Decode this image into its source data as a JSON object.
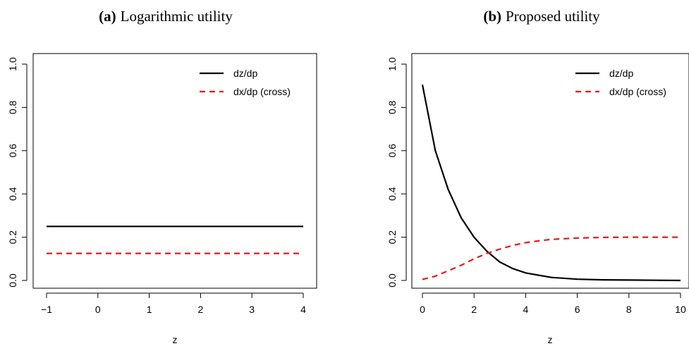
{
  "chart_data": [
    {
      "type": "line",
      "title_tag": "(a)",
      "title": "Logarithmic utility",
      "xlabel": "z",
      "ylabel": "",
      "xlim": [
        -1,
        4
      ],
      "ylim": [
        0,
        1
      ],
      "x_ticks": [
        "−1",
        "0",
        "1",
        "2",
        "3",
        "4"
      ],
      "x_tick_values": [
        -1,
        0,
        1,
        2,
        3,
        4
      ],
      "y_ticks": [
        "0.0",
        "0.2",
        "0.4",
        "0.6",
        "0.8",
        "1.0"
      ],
      "y_tick_values": [
        0,
        0.2,
        0.4,
        0.6,
        0.8,
        1.0
      ],
      "grid": false,
      "legend": "top-right",
      "series": [
        {
          "name": "dz/dp",
          "color": "#000000",
          "style": "solid",
          "x": [
            -1,
            4
          ],
          "y": [
            0.25,
            0.25
          ]
        },
        {
          "name": "dx/dp (cross)",
          "color": "#e41a1c",
          "style": "dashed",
          "x": [
            -1,
            4
          ],
          "y": [
            0.125,
            0.125
          ]
        }
      ]
    },
    {
      "type": "line",
      "title_tag": "(b)",
      "title": "Proposed utility",
      "xlabel": "z",
      "ylabel": "",
      "xlim": [
        0,
        10
      ],
      "ylim": [
        0,
        1
      ],
      "x_ticks": [
        "0",
        "2",
        "4",
        "6",
        "8",
        "10"
      ],
      "x_tick_values": [
        0,
        2,
        4,
        6,
        8,
        10
      ],
      "y_ticks": [
        "0.0",
        "0.2",
        "0.4",
        "0.6",
        "0.8",
        "1.0"
      ],
      "y_tick_values": [
        0,
        0.2,
        0.4,
        0.6,
        0.8,
        1.0
      ],
      "grid": false,
      "legend": "top-right",
      "series": [
        {
          "name": "dz/dp",
          "color": "#000000",
          "style": "solid",
          "x": [
            0,
            0.5,
            1,
            1.5,
            2,
            2.5,
            3,
            3.5,
            4,
            5,
            6,
            7,
            8,
            9,
            10
          ],
          "y": [
            0.905,
            0.6,
            0.42,
            0.29,
            0.2,
            0.135,
            0.085,
            0.055,
            0.035,
            0.014,
            0.006,
            0.003,
            0.002,
            0.001,
            0.0
          ]
        },
        {
          "name": "dx/dp (cross)",
          "color": "#e41a1c",
          "style": "dashed",
          "x": [
            0,
            0.5,
            1,
            1.5,
            2,
            2.5,
            3,
            3.5,
            4,
            4.5,
            5,
            6,
            7,
            8,
            9,
            10
          ],
          "y": [
            0.005,
            0.02,
            0.045,
            0.07,
            0.1,
            0.125,
            0.145,
            0.162,
            0.175,
            0.183,
            0.19,
            0.196,
            0.199,
            0.2,
            0.2,
            0.2
          ]
        }
      ]
    }
  ]
}
